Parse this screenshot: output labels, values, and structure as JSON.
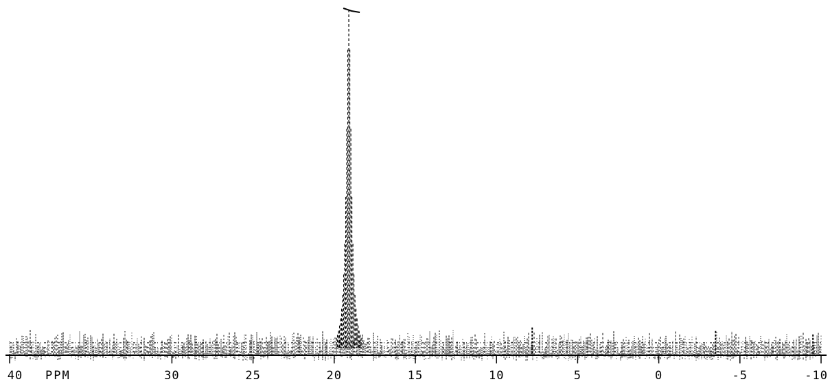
{
  "chart_data": {
    "type": "line",
    "title": "",
    "xlabel": "PPM",
    "ylabel": "",
    "x_unit_label": "PPM",
    "xlim": [
      40,
      -10
    ],
    "x_reversed": true,
    "ylim": [
      0,
      100
    ],
    "grid": false,
    "legend": "none",
    "x_ticks": [
      {
        "value": 40,
        "label": "40"
      },
      {
        "value": 30,
        "label": "30"
      },
      {
        "value": 25,
        "label": "25"
      },
      {
        "value": 20,
        "label": "20"
      },
      {
        "value": 15,
        "label": "15"
      },
      {
        "value": 10,
        "label": "10"
      },
      {
        "value": 5,
        "label": "5"
      },
      {
        "value": 0,
        "label": "0"
      },
      {
        "value": -5,
        "label": "-5"
      },
      {
        "value": -10,
        "label": "-10"
      }
    ],
    "series": [
      {
        "peaks": [
          {
            "x": 19.1,
            "y": 100
          },
          {
            "x": 7.8,
            "y": 8
          },
          {
            "x": -3.5,
            "y": 7
          },
          {
            "x": -9.5,
            "y": 6
          }
        ],
        "noise_level": 4
      }
    ],
    "color": "#000000"
  }
}
